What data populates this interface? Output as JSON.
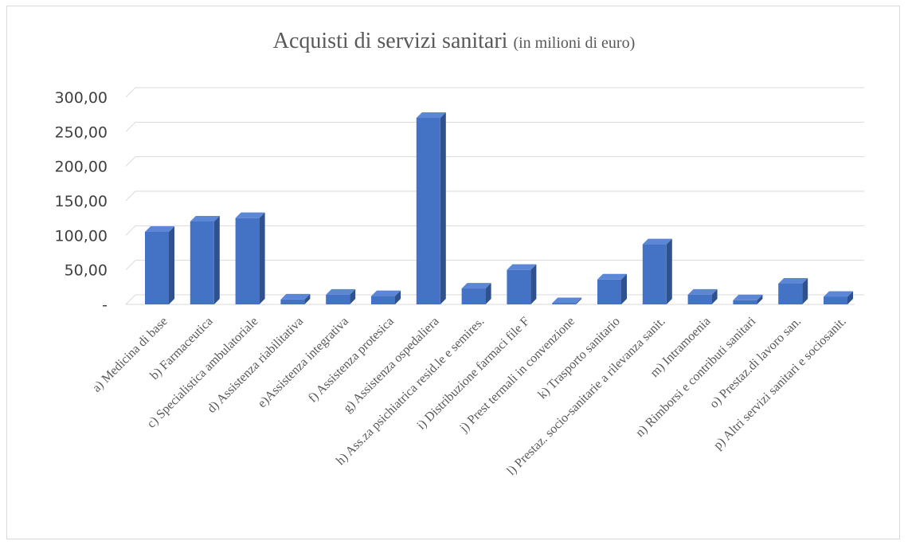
{
  "chart_data": {
    "type": "bar",
    "title": "Acquisti di servizi sanitari",
    "subtitle": "(in milioni di euro)",
    "xlabel": "",
    "ylabel": "",
    "ylim": [
      0,
      300
    ],
    "yticks": [
      {
        "value": 0,
        "label": "-"
      },
      {
        "value": 50,
        "label": "50,00"
      },
      {
        "value": 100,
        "label": "100,00"
      },
      {
        "value": 150,
        "label": "150,00"
      },
      {
        "value": 200,
        "label": "200,00"
      },
      {
        "value": 250,
        "label": "250,00"
      },
      {
        "value": 300,
        "label": "300,00"
      }
    ],
    "grid": true,
    "style": "3d-column",
    "bar_color": "#4472c4",
    "bar_side_color": "#2f528f",
    "bar_top_color": "#5b87d6",
    "categories": [
      "a) Medicina di base",
      "b) Farmaceutica",
      "c) Specialistica ambulatoriale",
      "d) Assistenza riabilitativa",
      "e)Assistenza integrativa",
      "f) Assistenza protesica",
      "g) Assistenza ospedaliera",
      "h) Ass.za psichiatrica resid.le e semires.",
      "i) Distribuzione farmaci file F",
      "j) Prest termali in convenzione",
      "k) Trasporto sanitario",
      "l) Prestaz. socio-sanitarie a rilevanza sanit.",
      "m) Intramoenia",
      "n)  Rimborsi e contributi sanitari",
      "o) Prestaz.di lavoro san.",
      "p) Altri servizi sanitari e sociosanit."
    ],
    "values": [
      105,
      120,
      125,
      7,
      14,
      12,
      270,
      23,
      50,
      1,
      36,
      87,
      14,
      6,
      30,
      11
    ]
  }
}
